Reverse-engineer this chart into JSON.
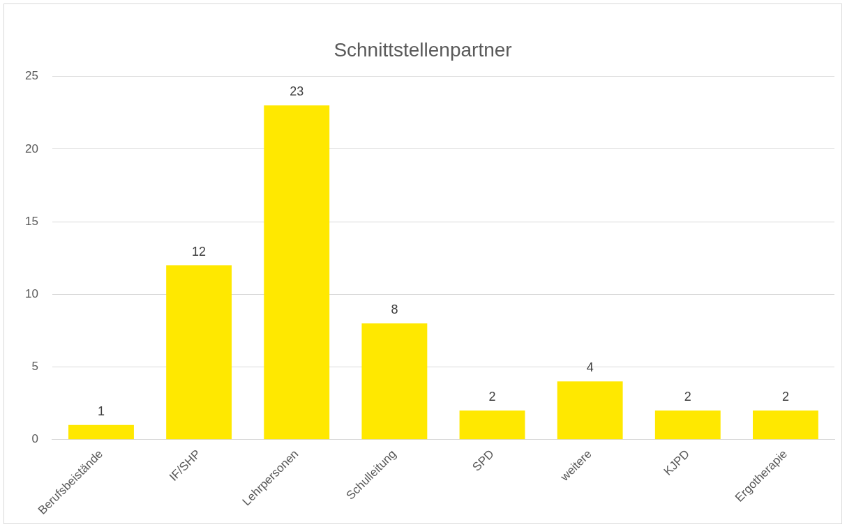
{
  "chart_data": {
    "type": "bar",
    "title": "Schnittstellenpartner",
    "categories": [
      "Berufsbeistände",
      "IF/SHP",
      "Lehrpersonen",
      "Schulleitung",
      "SPD",
      "weitere",
      "KJPD",
      "Ergotherapie"
    ],
    "values": [
      1,
      12,
      23,
      8,
      2,
      4,
      2,
      2
    ],
    "color": "#ffe800",
    "ylim": [
      0,
      25
    ],
    "yticks": [
      0,
      5,
      10,
      15,
      20,
      25
    ],
    "grid": "y",
    "legend": false,
    "data_labels": true
  }
}
